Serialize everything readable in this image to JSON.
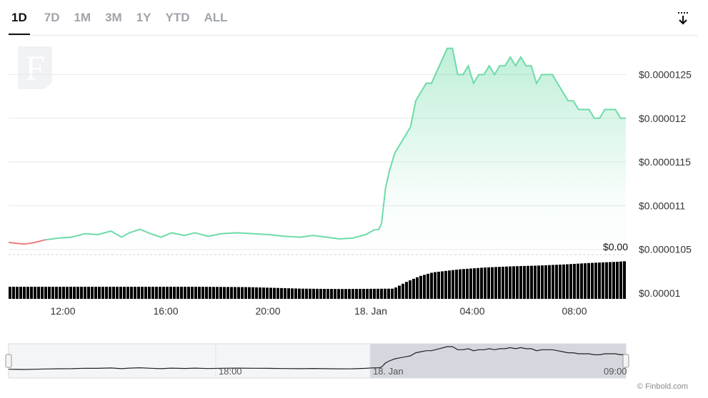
{
  "tabs": [
    {
      "label": "1D",
      "active": true
    },
    {
      "label": "7D",
      "active": false
    },
    {
      "label": "1M",
      "active": false
    },
    {
      "label": "3M",
      "active": false
    },
    {
      "label": "1Y",
      "active": false
    },
    {
      "label": "YTD",
      "active": false
    },
    {
      "label": "ALL",
      "active": false
    }
  ],
  "download_icon": "download-icon",
  "logo": {
    "letter": "F"
  },
  "volume_label": "$0.00",
  "credit": "© Finbold.com",
  "colors": {
    "up": "#6edba8",
    "down": "#f07c7c",
    "volume": "#000000",
    "navigator_line": "#222222",
    "navigator_selection": "#d4d8de"
  },
  "chart_data": {
    "type": "area",
    "y_ticks": [
      "$0.0000125",
      "$0.000012",
      "$0.0000115",
      "$0.000011",
      "$0.0000105",
      "$0.00001"
    ],
    "ylim": [
      1e-05,
      1.28e-05
    ],
    "x_ticks": [
      "12:00",
      "16:00",
      "20:00",
      "18. Jan",
      "04:00",
      "08:00"
    ],
    "navigator_ticks": [
      "18:00",
      "18. Jan",
      "09:00"
    ],
    "x_start_hour": 9.9,
    "price_series": {
      "hours": [
        9.9,
        10.2,
        10.5,
        10.9,
        11.3,
        11.8,
        12.3,
        12.8,
        13.3,
        13.8,
        14.2,
        14.5,
        14.9,
        15.3,
        15.7,
        16.1,
        16.6,
        17.0,
        17.5,
        18.0,
        18.6,
        19.2,
        19.8,
        20.4,
        21.0,
        21.5,
        22.0,
        22.5,
        23.0,
        23.5,
        23.8,
        24.0,
        24.1,
        24.25,
        24.4,
        24.5,
        24.6,
        24.8,
        25.0,
        25.2,
        25.4,
        25.6,
        25.8,
        26.0,
        26.3,
        26.6,
        26.8,
        27.0,
        27.2,
        27.4,
        27.6,
        27.8,
        28.0,
        28.2,
        28.4,
        28.6,
        28.8,
        29.0,
        29.2,
        29.4,
        29.6,
        29.8,
        30.0,
        30.2,
        30.4,
        30.6,
        30.8,
        31.0,
        31.2,
        31.4,
        31.6,
        31.8,
        32.0,
        32.2,
        32.4,
        32.6,
        32.8,
        33.0,
        33.2,
        33.4
      ],
      "values": [
        1.058e-05,
        1.057e-05,
        1.056e-05,
        1.058e-05,
        1.061e-05,
        1.063e-05,
        1.064e-05,
        1.068e-05,
        1.067e-05,
        1.071e-05,
        1.064e-05,
        1.069e-05,
        1.073e-05,
        1.068e-05,
        1.064e-05,
        1.069e-05,
        1.066e-05,
        1.069e-05,
        1.065e-05,
        1.068e-05,
        1.069e-05,
        1.068e-05,
        1.067e-05,
        1.065e-05,
        1.064e-05,
        1.066e-05,
        1.064e-05,
        1.062e-05,
        1.063e-05,
        1.067e-05,
        1.072e-05,
        1.073e-05,
        1.08e-05,
        1.12e-05,
        1.14e-05,
        1.15e-05,
        1.16e-05,
        1.17e-05,
        1.18e-05,
        1.19e-05,
        1.22e-05,
        1.23e-05,
        1.24e-05,
        1.24e-05,
        1.26e-05,
        1.28e-05,
        1.28e-05,
        1.25e-05,
        1.25e-05,
        1.26e-05,
        1.24e-05,
        1.25e-05,
        1.25e-05,
        1.26e-05,
        1.25e-05,
        1.26e-05,
        1.26e-05,
        1.27e-05,
        1.26e-05,
        1.27e-05,
        1.26e-05,
        1.26e-05,
        1.24e-05,
        1.25e-05,
        1.25e-05,
        1.25e-05,
        1.24e-05,
        1.23e-05,
        1.22e-05,
        1.22e-05,
        1.21e-05,
        1.21e-05,
        1.21e-05,
        1.2e-05,
        1.2e-05,
        1.21e-05,
        1.21e-05,
        1.21e-05,
        1.2e-05,
        1.2e-05
      ]
    },
    "volume_series": {
      "level_hours": [
        9.9,
        17.0,
        19.0,
        21.0,
        22.5,
        24.5,
        25.0,
        25.5,
        26.0,
        27.0,
        28.0,
        29.0,
        30.0,
        31.0,
        32.0,
        33.0,
        33.4
      ],
      "relative_levels": [
        0.32,
        0.32,
        0.31,
        0.27,
        0.26,
        0.27,
        0.45,
        0.6,
        0.7,
        0.78,
        0.83,
        0.86,
        0.88,
        0.91,
        0.95,
        0.98,
        1.0
      ]
    }
  }
}
